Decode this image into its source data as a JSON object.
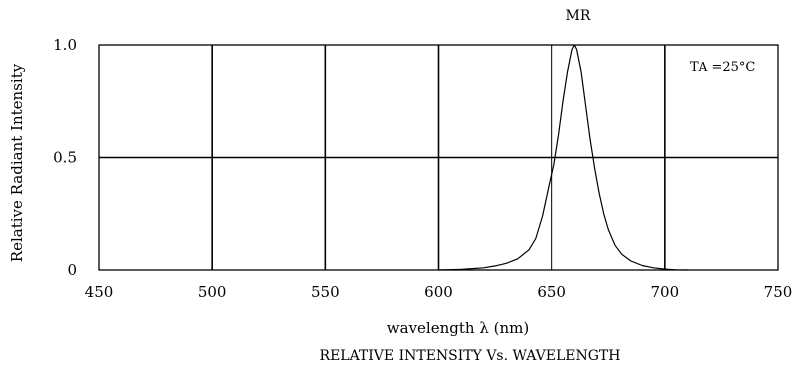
{
  "chart_data": {
    "type": "line",
    "title": "RELATIVE INTENSITY Vs. WAVELENGTH",
    "series_label": "MR",
    "xlabel": "wavelength  λ (nm)",
    "ylabel": "Relative  Radiant  Intensity",
    "annotation": {
      "main": "T",
      "sub": "A",
      "rest": " =25°C"
    },
    "xlim": [
      450,
      750
    ],
    "ylim": [
      0,
      1.0
    ],
    "x_ticks": [
      450,
      500,
      550,
      600,
      650,
      700,
      750
    ],
    "y_ticks": [
      {
        "value": 0,
        "label": "0"
      },
      {
        "value": 0.5,
        "label": "0.5"
      },
      {
        "value": 1.0,
        "label": "1.0"
      }
    ],
    "grid": true,
    "series": [
      {
        "x": [
          600,
          610,
          615,
          620,
          625,
          630,
          635,
          640,
          643,
          646,
          649,
          651,
          653,
          655,
          657,
          659,
          660,
          661,
          663,
          665,
          667,
          669,
          671,
          673,
          675,
          678,
          681,
          685,
          690,
          695,
          700,
          705,
          710
        ],
        "y": [
          0,
          0.003,
          0.006,
          0.01,
          0.018,
          0.03,
          0.05,
          0.09,
          0.14,
          0.24,
          0.38,
          0.47,
          0.6,
          0.75,
          0.88,
          0.98,
          1.0,
          0.98,
          0.88,
          0.73,
          0.58,
          0.45,
          0.34,
          0.25,
          0.18,
          0.11,
          0.07,
          0.04,
          0.02,
          0.01,
          0.004,
          0.001,
          0
        ]
      }
    ]
  }
}
